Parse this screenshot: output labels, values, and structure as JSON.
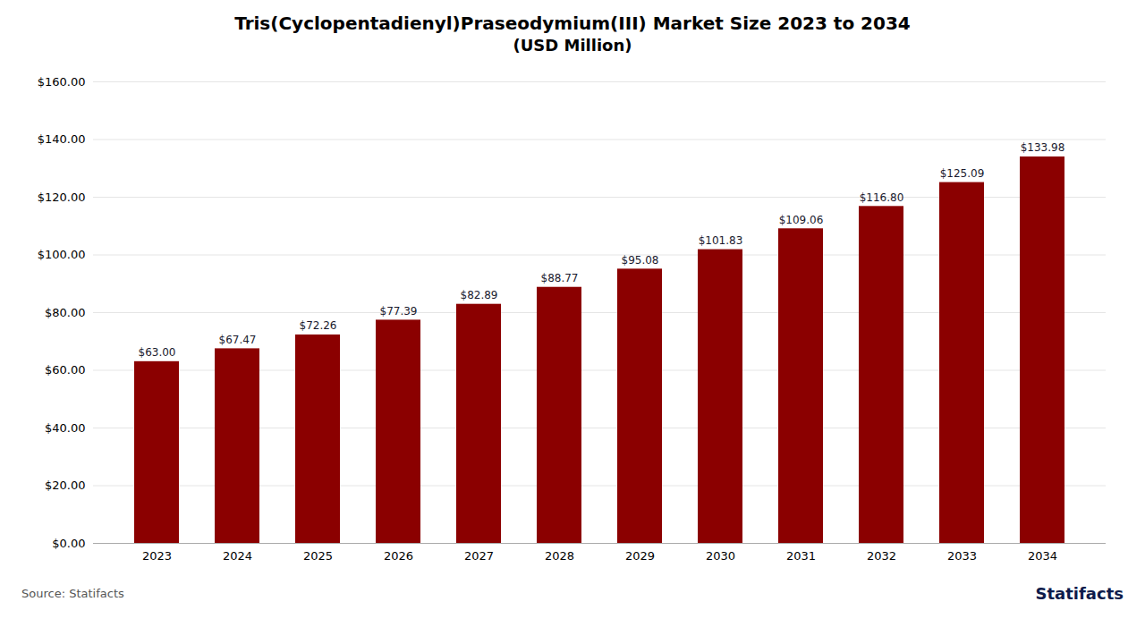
{
  "chart_data": {
    "type": "bar",
    "title": "Tris(Cyclopentadienyl)Praseodymium(III) Market Size 2023 to 2034",
    "subtitle": "(USD Million)",
    "categories": [
      "2023",
      "2024",
      "2025",
      "2026",
      "2027",
      "2028",
      "2029",
      "2030",
      "2031",
      "2032",
      "2033",
      "2034"
    ],
    "values": [
      63.0,
      67.47,
      72.26,
      77.39,
      82.89,
      88.77,
      95.08,
      101.83,
      109.06,
      116.8,
      125.09,
      133.98
    ],
    "value_labels": [
      "$63.00",
      "$67.47",
      "$72.26",
      "$77.39",
      "$82.89",
      "$88.77",
      "$95.08",
      "$101.83",
      "$109.06",
      "$116.80",
      "$125.09",
      "$133.98"
    ],
    "data_labels": true,
    "color": "#8B0000",
    "ylim": [
      0,
      160
    ],
    "yticks": [
      {
        "value": 0,
        "label": "$0.00"
      },
      {
        "value": 20,
        "label": "$20.00"
      },
      {
        "value": 40,
        "label": "$40.00"
      },
      {
        "value": 60,
        "label": "$60.00"
      },
      {
        "value": 80,
        "label": "$80.00"
      },
      {
        "value": 100,
        "label": "$100.00"
      },
      {
        "value": 120,
        "label": "$120.00"
      },
      {
        "value": 140,
        "label": "$140.00"
      },
      {
        "value": 160,
        "label": "$160.00"
      }
    ],
    "grid": true,
    "annotations": [
      "Source: Statifacts",
      "Statifacts"
    ]
  }
}
